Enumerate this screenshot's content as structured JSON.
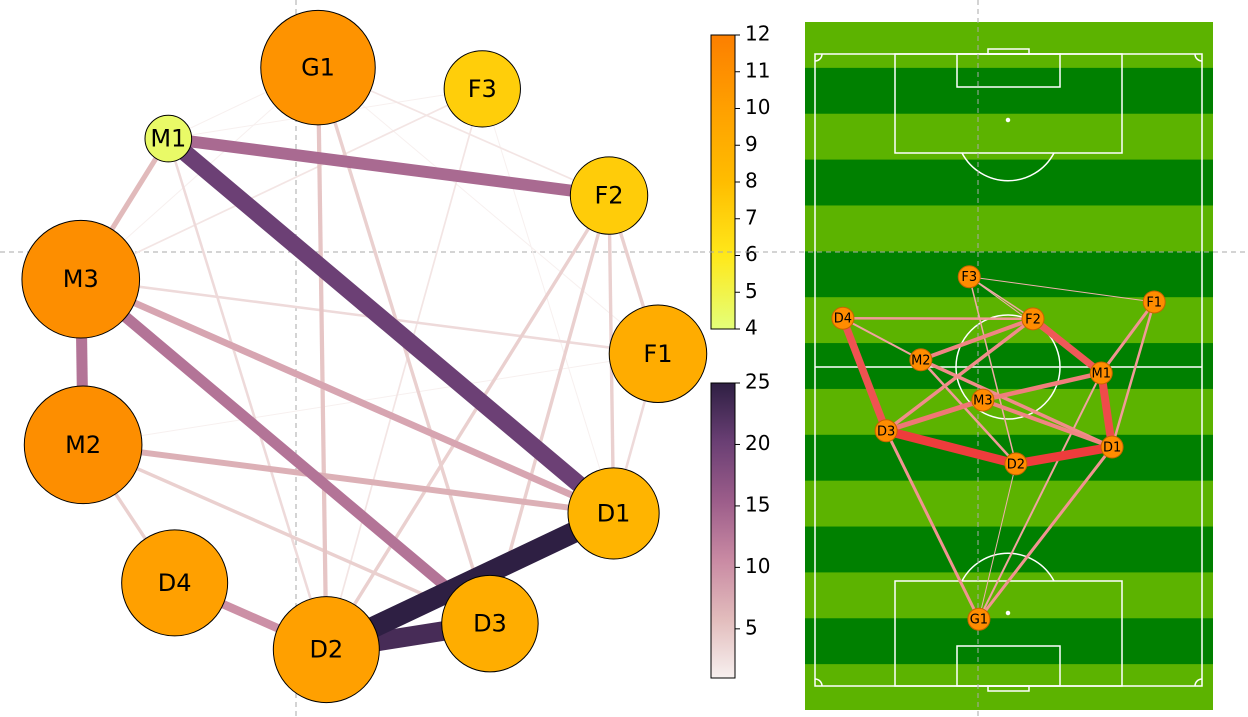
{
  "chart_data": [
    {
      "type": "network",
      "nodes": [
        {
          "label": "G1",
          "value": 10.8
        },
        {
          "label": "F3",
          "value": 7.2
        },
        {
          "label": "F2",
          "value": 7.3
        },
        {
          "label": "F1",
          "value": 9.2
        },
        {
          "label": "D1",
          "value": 8.6
        },
        {
          "label": "D3",
          "value": 9.1
        },
        {
          "label": "D2",
          "value": 10
        },
        {
          "label": "D4",
          "value": 10
        },
        {
          "label": "M2",
          "value": 11.1
        },
        {
          "label": "M3",
          "value": 11.1
        },
        {
          "label": "M1",
          "value": 4.4
        }
      ],
      "edges": [
        {
          "source": "D1",
          "target": "D2",
          "value": 25
        },
        {
          "source": "D2",
          "target": "D3",
          "value": 23
        },
        {
          "source": "M1",
          "target": "D1",
          "value": 20
        },
        {
          "source": "M1",
          "target": "F2",
          "value": 14
        },
        {
          "source": "M3",
          "target": "D3",
          "value": 13
        },
        {
          "source": "M3",
          "target": "M2",
          "value": 13
        },
        {
          "source": "D4",
          "target": "D2",
          "value": 10
        },
        {
          "source": "M3",
          "target": "D1",
          "value": 8
        },
        {
          "source": "M2",
          "target": "D1",
          "value": 7
        },
        {
          "source": "M1",
          "target": "M3",
          "value": 6
        },
        {
          "source": "G1",
          "target": "D2",
          "value": 5
        },
        {
          "source": "D1",
          "target": "F2",
          "value": 4
        },
        {
          "source": "D2",
          "target": "F2",
          "value": 4
        },
        {
          "source": "G1",
          "target": "D3",
          "value": 4
        },
        {
          "source": "M2",
          "target": "D4",
          "value": 4
        },
        {
          "source": "M2",
          "target": "D3",
          "value": 4
        },
        {
          "source": "D3",
          "target": "F2",
          "value": 4
        },
        {
          "source": "F1",
          "target": "F2",
          "value": 4
        },
        {
          "source": "D1",
          "target": "F1",
          "value": 3
        },
        {
          "source": "M3",
          "target": "F1",
          "value": 3
        },
        {
          "source": "M1",
          "target": "D2",
          "value": 3
        },
        {
          "source": "G1",
          "target": "F2",
          "value": 2
        },
        {
          "source": "F3",
          "target": "D2",
          "value": 2
        },
        {
          "source": "F3",
          "target": "M3",
          "value": 2
        },
        {
          "source": "F3",
          "target": "D1",
          "value": 1
        },
        {
          "source": "M1",
          "target": "F3",
          "value": 1
        },
        {
          "source": "G1",
          "target": "M1",
          "value": 1
        },
        {
          "source": "G1",
          "target": "F1",
          "value": 1
        },
        {
          "source": "G1",
          "target": "M3",
          "value": 1
        },
        {
          "source": "M2",
          "target": "F1",
          "value": 1
        }
      ],
      "node_colorbar": {
        "ylim": [
          4,
          12
        ],
        "yticks": [
          4,
          5,
          6,
          7,
          8,
          9,
          10,
          11,
          12
        ],
        "colormap": [
          "#e4ff7a",
          "#ffe81a",
          "#ffbd00",
          "#ffa000",
          "#fc7f00"
        ]
      },
      "edge_colorbar": {
        "ylim": [
          1,
          25
        ],
        "yticks": [
          5,
          10,
          15,
          20,
          25
        ],
        "colormap": [
          "#f7f0ef",
          "#e2bcbc",
          "#c98aa3",
          "#9c5d8a",
          "#6a3f74",
          "#2e1f43"
        ]
      }
    },
    {
      "type": "pitch-network",
      "nodes": [
        {
          "label": "F3",
          "x": 27.1,
          "y": 37.0
        },
        {
          "label": "F1",
          "x": 59.6,
          "y": 41.2
        },
        {
          "label": "D4",
          "x": 4.9,
          "y": 43.9
        },
        {
          "label": "F2",
          "x": 38.3,
          "y": 44.0
        },
        {
          "label": "M2",
          "x": 18.6,
          "y": 50.8
        },
        {
          "label": "M1",
          "x": 50.3,
          "y": 53.0
        },
        {
          "label": "M3",
          "x": 29.5,
          "y": 57.5
        },
        {
          "label": "D3",
          "x": 12.5,
          "y": 62.6
        },
        {
          "label": "D1",
          "x": 52.2,
          "y": 65.3
        },
        {
          "label": "D2",
          "x": 35.3,
          "y": 68.1
        },
        {
          "label": "G1",
          "x": 28.8,
          "y": 93.9
        }
      ],
      "edges": [
        {
          "source": "D3",
          "target": "D2",
          "value": 18
        },
        {
          "source": "D2",
          "target": "D1",
          "value": 18
        },
        {
          "source": "D1",
          "target": "M1",
          "value": 16
        },
        {
          "source": "M1",
          "target": "F2",
          "value": 14
        },
        {
          "source": "D4",
          "target": "D3",
          "value": 15
        },
        {
          "source": "D3",
          "target": "M3",
          "value": 10
        },
        {
          "source": "M3",
          "target": "M1",
          "value": 9
        },
        {
          "source": "M3",
          "target": "D1",
          "value": 8
        },
        {
          "source": "M2",
          "target": "D1",
          "value": 7
        },
        {
          "source": "M2",
          "target": "F2",
          "value": 8
        },
        {
          "source": "D3",
          "target": "F2",
          "value": 7
        },
        {
          "source": "D3",
          "target": "G1",
          "value": 6
        },
        {
          "source": "G1",
          "target": "D1",
          "value": 6
        },
        {
          "source": "F1",
          "target": "M1",
          "value": 6
        },
        {
          "source": "D4",
          "target": "F2",
          "value": 5
        },
        {
          "source": "F1",
          "target": "D1",
          "value": 5
        },
        {
          "source": "M2",
          "target": "D2",
          "value": 5
        },
        {
          "source": "G1",
          "target": "M1",
          "value": 4
        },
        {
          "source": "F3",
          "target": "F2",
          "value": 3
        },
        {
          "source": "F3",
          "target": "D2",
          "value": 3
        },
        {
          "source": "F3",
          "target": "M1",
          "value": 2
        },
        {
          "source": "F1",
          "target": "F3",
          "value": 2
        },
        {
          "source": "G1",
          "target": "D2",
          "value": 2
        },
        {
          "source": "D4",
          "target": "M2",
          "value": 4
        }
      ],
      "edge_color_range": [
        "#f2c0bc",
        "#ee3c3c"
      ],
      "node_color": "#ff8c00",
      "stripe_colors": [
        "#5cb300",
        "#008000"
      ]
    }
  ]
}
